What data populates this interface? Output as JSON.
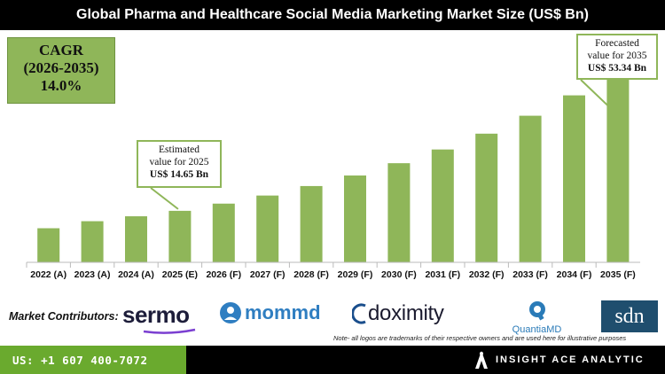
{
  "title": "Global Pharma and Healthcare Social Media Marketing Market Size (US$ Bn)",
  "cagr": {
    "label": "CAGR",
    "period": "(2026-2035)",
    "value": "14.0%"
  },
  "callouts": {
    "estimated": {
      "line1": "Estimated",
      "line2": "value for 2025",
      "value": "US$ 14.65 Bn"
    },
    "forecast": {
      "line1": "Forecasted",
      "line2": "value for 2035",
      "value": "US$ 53.34 Bn"
    }
  },
  "chart_data": {
    "type": "bar",
    "title": "Global Pharma and Healthcare Social Media Marketing Market Size (US$ Bn)",
    "categories": [
      "2022 (A)",
      "2023 (A)",
      "2024 (A)",
      "2025 (E)",
      "2026 (F)",
      "2027 (F)",
      "2028 (F)",
      "2029 (F)",
      "2030 (F)",
      "2031 (F)",
      "2032 (F)",
      "2033 (F)",
      "2034 (F)",
      "2035 (F)"
    ],
    "values": [
      9.7,
      11.7,
      13.1,
      14.65,
      16.7,
      19.0,
      21.7,
      24.7,
      28.2,
      32.1,
      36.6,
      41.7,
      47.5,
      53.34
    ],
    "ylim": [
      0,
      60
    ],
    "grid": false,
    "bar_color": "#8fb659"
  },
  "contributors": {
    "label": "Market Contributors:",
    "logos": [
      "sermo",
      "mommd",
      "doximity",
      "QuantiaMD",
      "sdn"
    ]
  },
  "note": "Note- all logos are trademarks of their respective owners and are used here for illustrative purposes",
  "footer": {
    "phone": "US: +1 607 400-7072",
    "brand": "INSIGHT ACE ANALYTIC"
  }
}
